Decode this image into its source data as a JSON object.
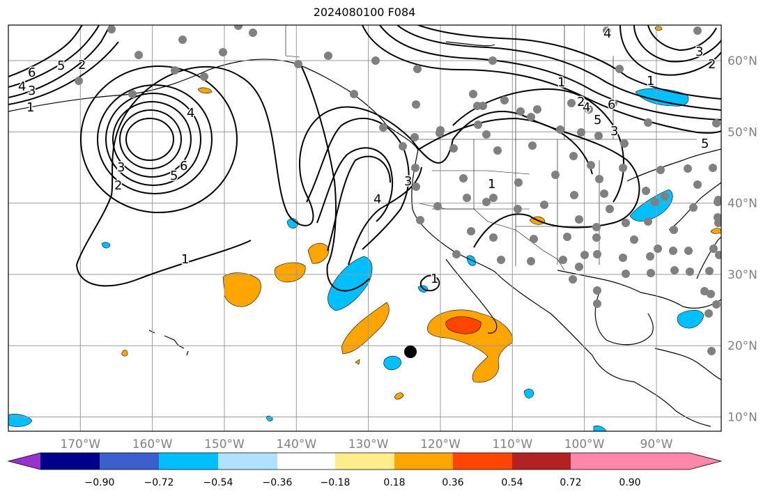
{
  "title": "2024080100 F084",
  "map": {
    "projection": "plate-carree",
    "lon_range": [
      -180,
      -81
    ],
    "lat_range": [
      8,
      65
    ],
    "lon_labels": [
      "170°W",
      "160°W",
      "150°W",
      "140°W",
      "130°W",
      "120°W",
      "110°W",
      "100°W",
      "90°W"
    ],
    "lat_labels": [
      "10°N",
      "20°N",
      "30°N",
      "40°N",
      "50°N",
      "60°N"
    ],
    "grid": true
  },
  "colorbar": {
    "ticks": [
      "−0.90",
      "−0.72",
      "−0.54",
      "−0.36",
      "−0.18",
      "0.18",
      "0.36",
      "0.54",
      "0.72",
      "0.90"
    ],
    "colors": [
      "#9932cc",
      "#00008b",
      "#3a5fcd",
      "#00bfff",
      "#b0e2ff",
      "#ffffff",
      "#ffec8b",
      "#ffa500",
      "#ff4500",
      "#b22222",
      "#ff88aa"
    ],
    "extend": "both"
  },
  "contour_labels": [
    "6",
    "5",
    "4",
    "3",
    "2",
    "1",
    "4",
    "5",
    "6",
    "3",
    "2",
    "1",
    "4",
    "3",
    "1",
    "1",
    "1",
    "4",
    "5",
    "6",
    "2",
    "3",
    "5",
    "4",
    "3",
    "2",
    "1"
  ],
  "storm_marker": {
    "lon": -124,
    "lat": 19,
    "color": "#000000"
  },
  "station_dot_color": "#808080"
}
